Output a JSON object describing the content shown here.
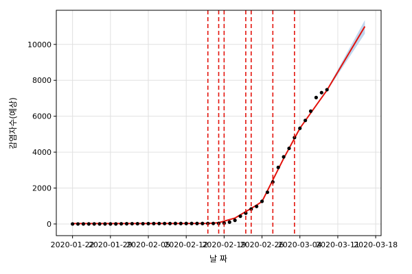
{
  "chart_data": {
    "type": "line",
    "title": "",
    "xlabel": "날 짜",
    "ylabel": "감염자수(예상)",
    "x_tick_labels": [
      "2020-01-22",
      "2020-01-29",
      "2020-02-05",
      "2020-02-12",
      "2020-02-19",
      "2020-02-26",
      "2020-03-04",
      "2020-03-11",
      "2020-03-18"
    ],
    "y_tick_labels": [
      "0",
      "2000",
      "4000",
      "6000",
      "8000",
      "10000"
    ],
    "xlim": [
      "2020-01-19",
      "2020-03-19"
    ],
    "ylim": [
      -650,
      11900
    ],
    "grid": true,
    "series": [
      {
        "kind": "observed",
        "marker": "dot",
        "color": "#000000",
        "points": [
          [
            "2020-01-22",
            1
          ],
          [
            "2020-01-23",
            1
          ],
          [
            "2020-01-24",
            2
          ],
          [
            "2020-01-25",
            2
          ],
          [
            "2020-01-26",
            3
          ],
          [
            "2020-01-27",
            4
          ],
          [
            "2020-01-28",
            4
          ],
          [
            "2020-01-29",
            4
          ],
          [
            "2020-01-30",
            4
          ],
          [
            "2020-01-31",
            11
          ],
          [
            "2020-02-01",
            12
          ],
          [
            "2020-02-02",
            15
          ],
          [
            "2020-02-03",
            15
          ],
          [
            "2020-02-04",
            16
          ],
          [
            "2020-02-05",
            19
          ],
          [
            "2020-02-06",
            23
          ],
          [
            "2020-02-07",
            24
          ],
          [
            "2020-02-08",
            24
          ],
          [
            "2020-02-09",
            25
          ],
          [
            "2020-02-10",
            27
          ],
          [
            "2020-02-11",
            28
          ],
          [
            "2020-02-12",
            28
          ],
          [
            "2020-02-13",
            28
          ],
          [
            "2020-02-14",
            28
          ],
          [
            "2020-02-15",
            28
          ],
          [
            "2020-02-16",
            29
          ],
          [
            "2020-02-17",
            30
          ],
          [
            "2020-02-18",
            31
          ],
          [
            "2020-02-19",
            46
          ],
          [
            "2020-02-20",
            104
          ],
          [
            "2020-02-21",
            204
          ],
          [
            "2020-02-22",
            433
          ],
          [
            "2020-02-23",
            602
          ],
          [
            "2020-02-24",
            833
          ],
          [
            "2020-02-25",
            977
          ],
          [
            "2020-02-26",
            1261
          ],
          [
            "2020-02-27",
            1766
          ],
          [
            "2020-02-28",
            2337
          ],
          [
            "2020-02-29",
            3150
          ],
          [
            "2020-03-01",
            3736
          ],
          [
            "2020-03-02",
            4212
          ],
          [
            "2020-03-03",
            4812
          ],
          [
            "2020-03-04",
            5328
          ],
          [
            "2020-03-05",
            5766
          ],
          [
            "2020-03-06",
            6284
          ],
          [
            "2020-03-07",
            7041
          ],
          [
            "2020-03-08",
            7314
          ],
          [
            "2020-03-09",
            7478
          ]
        ]
      },
      {
        "kind": "forecast",
        "color": "#e3120b",
        "band_color": "#a9c8e8",
        "points": [
          [
            "2020-01-22",
            20,
            20,
            20
          ],
          [
            "2020-02-16",
            30,
            30,
            30
          ],
          [
            "2020-02-18",
            70,
            70,
            70
          ],
          [
            "2020-02-21",
            330,
            330,
            330
          ],
          [
            "2020-02-25",
            1050,
            1050,
            1050
          ],
          [
            "2020-02-26",
            1250,
            1250,
            1250
          ],
          [
            "2020-03-01",
            3650,
            3650,
            3650
          ],
          [
            "2020-03-04",
            5330,
            5330,
            5330
          ],
          [
            "2020-03-09",
            7450,
            7400,
            7500
          ],
          [
            "2020-03-16",
            11000,
            10600,
            11350
          ]
        ]
      }
    ],
    "changepoints": [
      "2020-02-16",
      "2020-02-18",
      "2020-02-19",
      "2020-02-23",
      "2020-02-24",
      "2020-02-28",
      "2020-03-03"
    ],
    "colors": {
      "observed": "#000000",
      "forecast": "#e3120b",
      "changepoint": "#e3120b",
      "band": "#a9c8e8",
      "grid": "#e0e0e0"
    }
  }
}
